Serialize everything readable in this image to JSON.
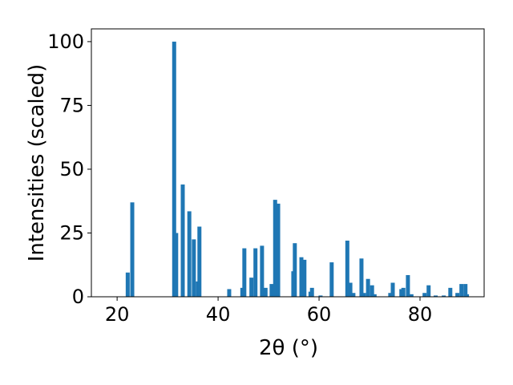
{
  "chart_data": {
    "type": "bar",
    "xlabel": "2θ (°)",
    "ylabel": "Intensities (scaled)",
    "color": "#1f77b4",
    "x": [
      22.1,
      23.0,
      31.3,
      31.7,
      33.0,
      34.3,
      35.2,
      36.0,
      36.3,
      42.2,
      44.8,
      45.2,
      46.6,
      47.4,
      48.7,
      49.4,
      50.6,
      51.3,
      51.9,
      54.9,
      55.2,
      56.5,
      57.1,
      58.3,
      58.6,
      60.3,
      62.5,
      65.6,
      66.2,
      66.8,
      68.4,
      68.9,
      69.7,
      70.5,
      71.0,
      74.1,
      74.6,
      76.3,
      76.7,
      77.6,
      78.3,
      80.9,
      81.7,
      83.1,
      84.7,
      86.0,
      87.4,
      88.2,
      89.0,
      89.3
    ],
    "values": [
      9.5,
      37,
      100,
      25,
      44,
      33.5,
      22.5,
      6,
      27.5,
      3,
      3.5,
      19,
      7.5,
      19,
      20,
      3.5,
      5,
      38,
      36.5,
      10,
      21,
      15.5,
      14.5,
      2,
      3.5,
      0.5,
      13.5,
      22,
      5.5,
      1.5,
      15,
      1.5,
      7,
      4.5,
      1,
      1.5,
      5.5,
      3,
      3.5,
      8.5,
      1,
      1.5,
      4.5,
      0.5,
      0.5,
      3.5,
      1.5,
      5,
      5,
      1
    ],
    "xlim": [
      14.9,
      92.7
    ],
    "ylim": [
      0,
      105
    ],
    "xticks": [
      20,
      40,
      60,
      80
    ],
    "yticks": [
      0,
      25,
      50,
      75,
      100
    ]
  }
}
